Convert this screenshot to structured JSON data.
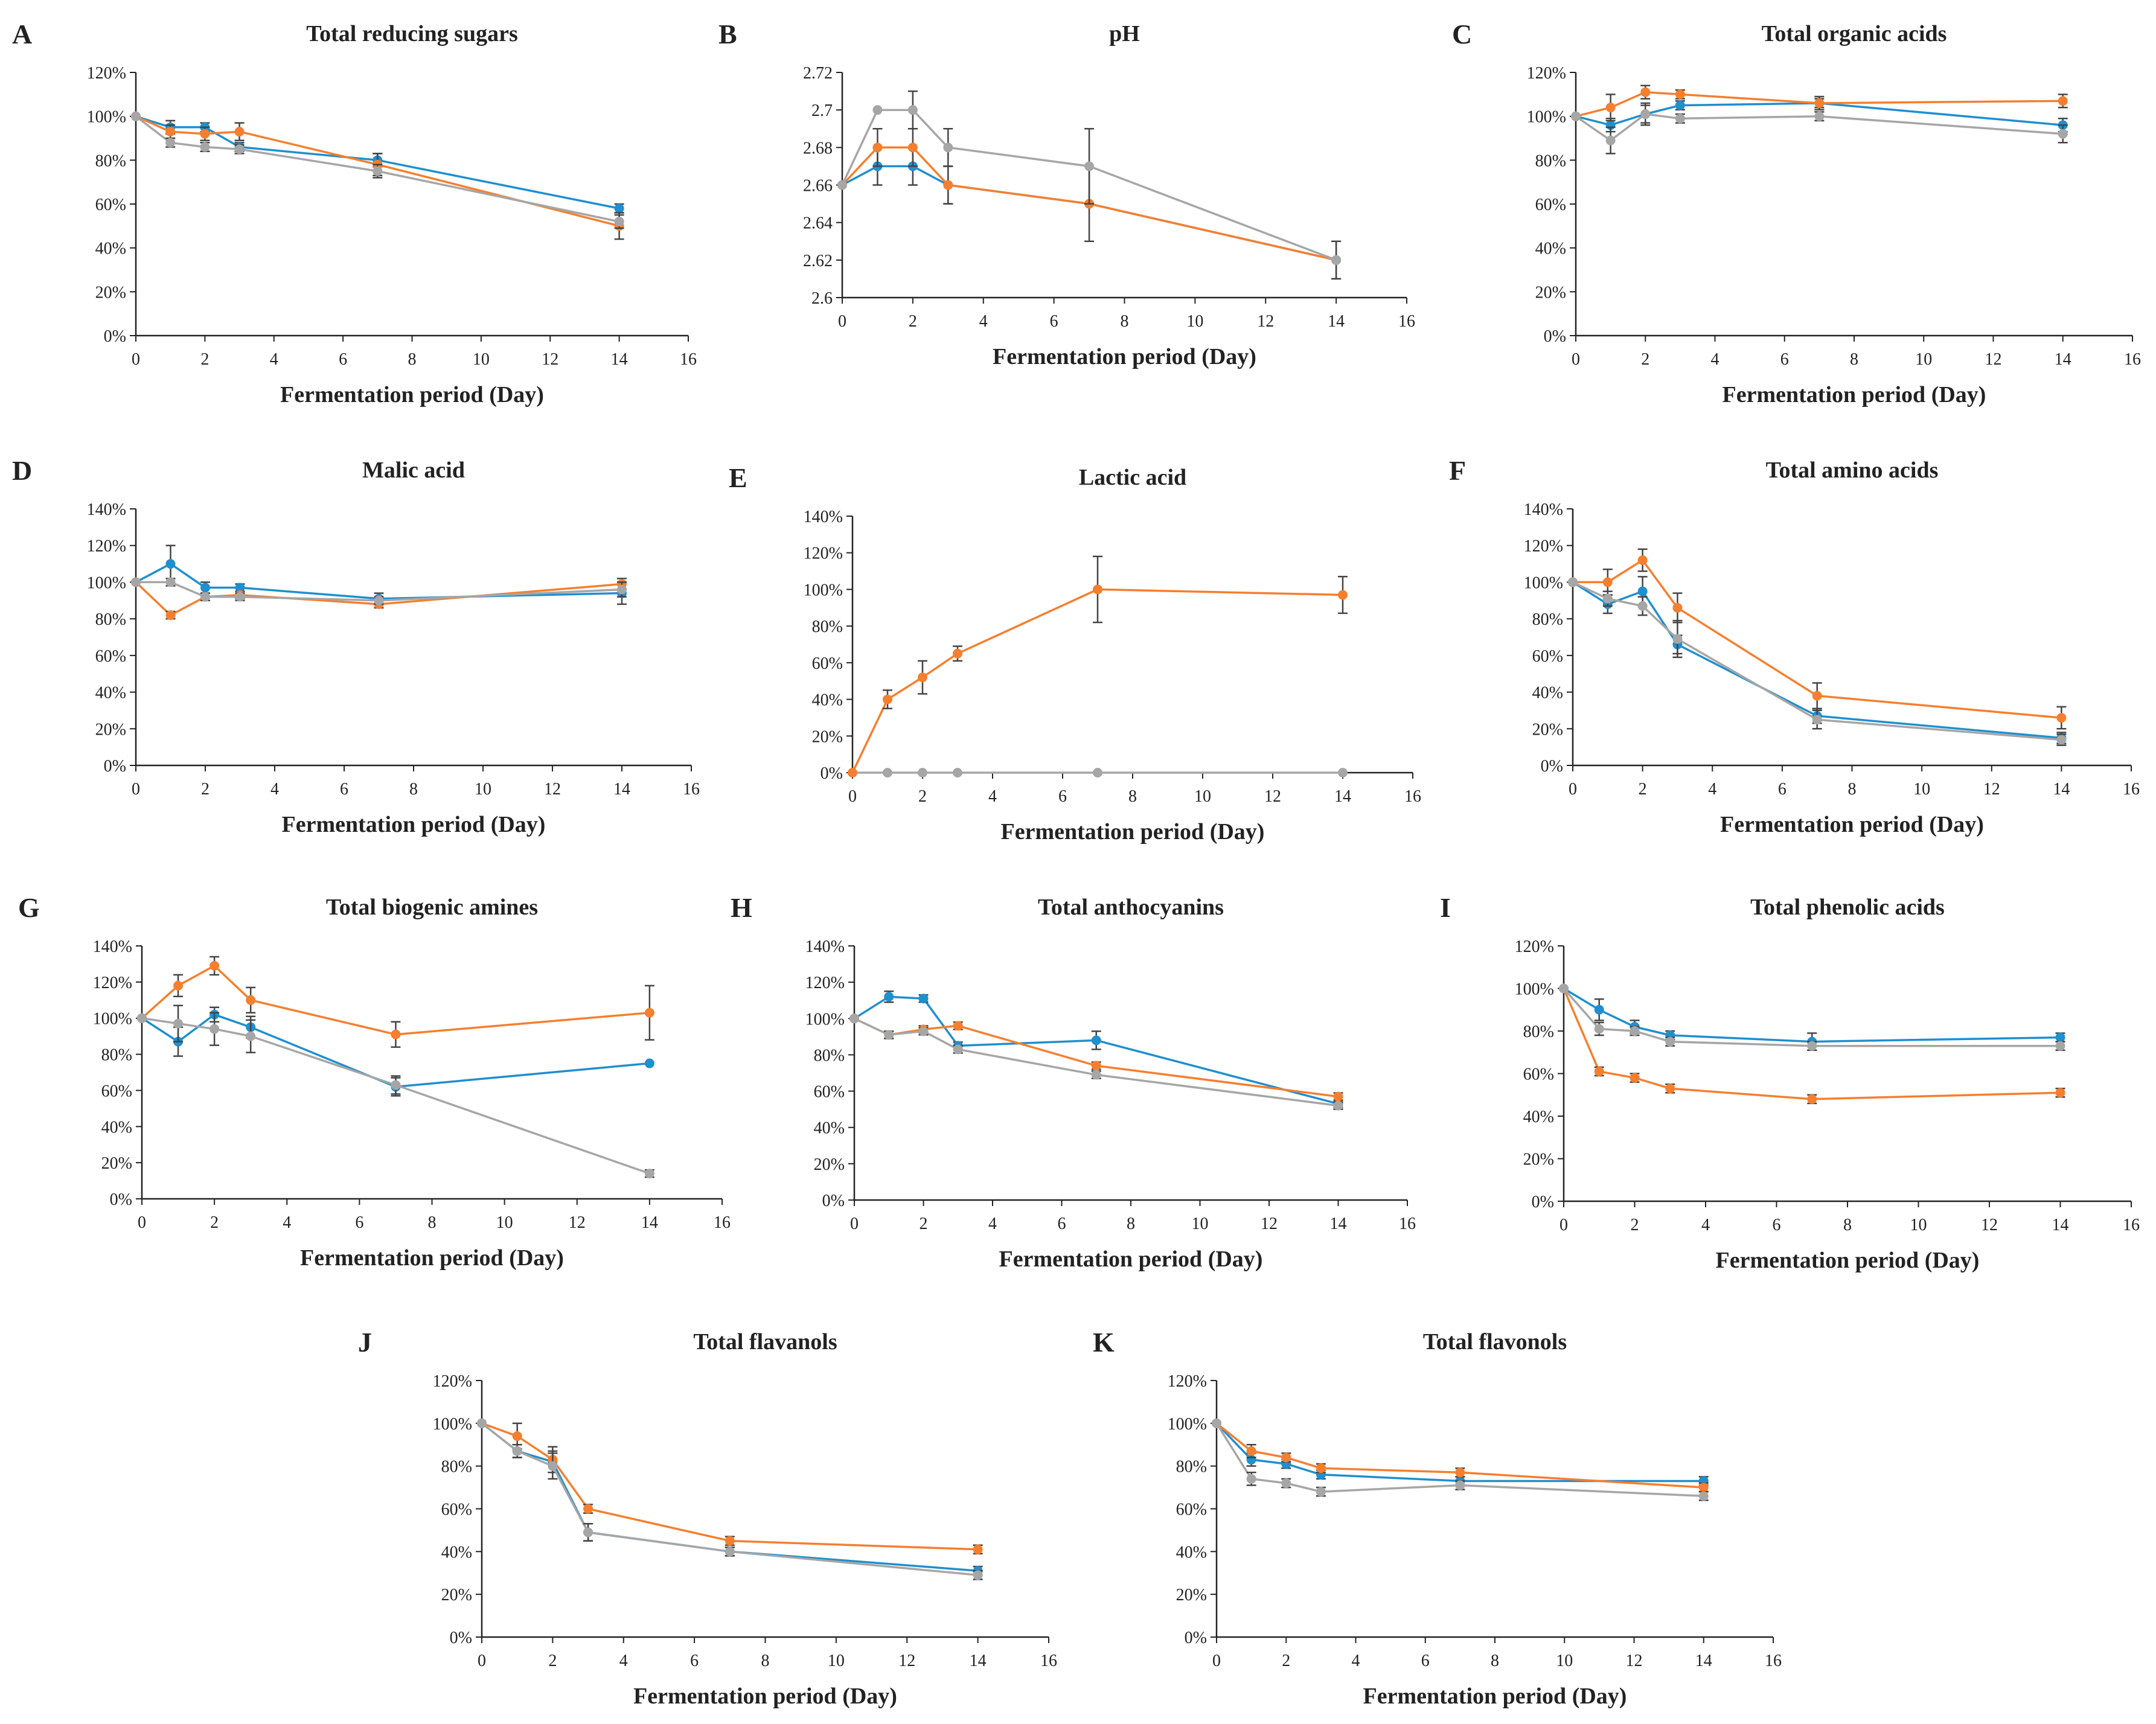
{
  "figure": {
    "series_colors": {
      "blue": "#1f8fcf",
      "orange": "#f57f2f",
      "gray": "#a6a6a6"
    },
    "xlabel": "Fermentation period (Day)"
  },
  "chart_data": [
    {
      "letter": "A",
      "type": "line",
      "title": "Total reducing sugars",
      "xlabel": "Fermentation period (Day)",
      "xlim": [
        0,
        16
      ],
      "xticks": [
        0,
        2,
        4,
        6,
        8,
        10,
        12,
        14,
        16
      ],
      "ylim": [
        0,
        120
      ],
      "yticks": [
        0,
        20,
        40,
        60,
        80,
        100,
        120
      ],
      "ytick_labels": [
        "0%",
        "20%",
        "40%",
        "60%",
        "80%",
        "100%",
        "120%"
      ],
      "x": [
        0,
        1,
        2,
        3,
        7,
        14
      ],
      "series": [
        {
          "name": "blue",
          "color": "#1f8fcf",
          "values": [
            100,
            95,
            95,
            86,
            80,
            58
          ],
          "errors": [
            0,
            3,
            2,
            2,
            3,
            2
          ]
        },
        {
          "name": "orange",
          "color": "#f57f2f",
          "values": [
            100,
            93,
            92,
            93,
            78,
            50
          ],
          "errors": [
            0,
            3,
            3,
            4,
            5,
            6
          ]
        },
        {
          "name": "gray",
          "color": "#a6a6a6",
          "values": [
            100,
            88,
            86,
            85,
            75,
            52
          ],
          "errors": [
            0,
            2,
            2,
            2,
            3,
            3
          ]
        }
      ]
    },
    {
      "letter": "B",
      "type": "line",
      "title": "pH",
      "xlabel": "Fermentation period (Day)",
      "xlim": [
        0,
        16
      ],
      "xticks": [
        0,
        2,
        4,
        6,
        8,
        10,
        12,
        14,
        16
      ],
      "ylim": [
        2.6,
        2.72
      ],
      "yticks": [
        2.6,
        2.62,
        2.64,
        2.66,
        2.68,
        2.7,
        2.72
      ],
      "ytick_labels": [
        "2.6",
        "2.62",
        "2.64",
        "2.66",
        "2.68",
        "2.7",
        "2.72"
      ],
      "x": [
        0,
        1,
        2,
        3,
        7,
        14
      ],
      "series": [
        {
          "name": "blue",
          "color": "#1f8fcf",
          "values": [
            2.66,
            2.67,
            2.67,
            2.66,
            2.65,
            2.62
          ],
          "errors": [
            0,
            0.01,
            0.01,
            0.01,
            0,
            0
          ]
        },
        {
          "name": "orange",
          "color": "#f57f2f",
          "values": [
            2.66,
            2.68,
            2.68,
            2.66,
            2.65,
            2.62
          ],
          "errors": [
            0,
            0.01,
            0.01,
            0.01,
            0.02,
            0.01
          ]
        },
        {
          "name": "gray",
          "color": "#a6a6a6",
          "values": [
            2.66,
            2.7,
            2.7,
            2.68,
            2.67,
            2.62
          ],
          "errors": [
            0,
            0,
            0.01,
            0.01,
            0.02,
            0.01
          ]
        }
      ]
    },
    {
      "letter": "C",
      "type": "line",
      "title": "Total organic acids",
      "xlabel": "Fermentation period (Day)",
      "xlim": [
        0,
        16
      ],
      "xticks": [
        0,
        2,
        4,
        6,
        8,
        10,
        12,
        14,
        16
      ],
      "ylim": [
        0,
        120
      ],
      "yticks": [
        0,
        20,
        40,
        60,
        80,
        100,
        120
      ],
      "ytick_labels": [
        "0%",
        "20%",
        "40%",
        "60%",
        "80%",
        "100%",
        "120%"
      ],
      "x": [
        0,
        1,
        2,
        3,
        7,
        14
      ],
      "series": [
        {
          "name": "blue",
          "color": "#1f8fcf",
          "values": [
            100,
            96,
            101,
            105,
            106,
            96
          ],
          "errors": [
            0,
            3,
            5,
            2,
            2,
            3
          ]
        },
        {
          "name": "orange",
          "color": "#f57f2f",
          "values": [
            100,
            104,
            111,
            110,
            106,
            107
          ],
          "errors": [
            0,
            6,
            3,
            2,
            3,
            3
          ]
        },
        {
          "name": "gray",
          "color": "#a6a6a6",
          "values": [
            100,
            89,
            101,
            99,
            100,
            92
          ],
          "errors": [
            0,
            6,
            4,
            2,
            2,
            4
          ]
        }
      ]
    },
    {
      "letter": "D",
      "type": "line",
      "title": "Malic acid",
      "xlabel": "Fermentation period (Day)",
      "xlim": [
        0,
        16
      ],
      "xticks": [
        0,
        2,
        4,
        6,
        8,
        10,
        12,
        14,
        16
      ],
      "ylim": [
        0,
        140
      ],
      "yticks": [
        0,
        20,
        40,
        60,
        80,
        100,
        120,
        140
      ],
      "ytick_labels": [
        "0%",
        "20%",
        "40%",
        "60%",
        "80%",
        "100%",
        "120%",
        "140%"
      ],
      "x": [
        0,
        1,
        2,
        3,
        7,
        14
      ],
      "series": [
        {
          "name": "blue",
          "color": "#1f8fcf",
          "values": [
            100,
            110,
            97,
            97,
            91,
            94
          ],
          "errors": [
            0,
            10,
            3,
            2,
            3,
            6
          ]
        },
        {
          "name": "orange",
          "color": "#f57f2f",
          "values": [
            100,
            82,
            92,
            93,
            88,
            99
          ],
          "errors": [
            0,
            2,
            2,
            2,
            2,
            3
          ]
        },
        {
          "name": "gray",
          "color": "#a6a6a6",
          "values": [
            100,
            100,
            92,
            92,
            90,
            96
          ],
          "errors": [
            0,
            2,
            2,
            2,
            2,
            4
          ]
        }
      ]
    },
    {
      "letter": "E",
      "type": "line",
      "title": "Lactic acid",
      "xlabel": "Fermentation period (Day)",
      "xlim": [
        0,
        16
      ],
      "xticks": [
        0,
        2,
        4,
        6,
        8,
        10,
        12,
        14,
        16
      ],
      "ylim": [
        0,
        140
      ],
      "yticks": [
        0,
        20,
        40,
        60,
        80,
        100,
        120,
        140
      ],
      "ytick_labels": [
        "0%",
        "20%",
        "40%",
        "60%",
        "80%",
        "100%",
        "120%",
        "140%"
      ],
      "x": [
        0,
        1,
        2,
        3,
        7,
        14
      ],
      "series": [
        {
          "name": "gray",
          "color": "#a6a6a6",
          "values": [
            0,
            0,
            0,
            0,
            0,
            0
          ],
          "errors": [
            0,
            0,
            0,
            0,
            0,
            0
          ]
        },
        {
          "name": "orange",
          "color": "#f57f2f",
          "values": [
            0,
            40,
            52,
            65,
            100,
            97
          ],
          "errors": [
            0,
            5,
            9,
            4,
            18,
            10
          ]
        }
      ]
    },
    {
      "letter": "F",
      "type": "line",
      "title": "Total amino acids",
      "xlabel": "Fermentation period (Day)",
      "xlim": [
        0,
        16
      ],
      "xticks": [
        0,
        2,
        4,
        6,
        8,
        10,
        12,
        14,
        16
      ],
      "ylim": [
        0,
        140
      ],
      "yticks": [
        0,
        20,
        40,
        60,
        80,
        100,
        120,
        140
      ],
      "ytick_labels": [
        "0%",
        "20%",
        "40%",
        "60%",
        "80%",
        "100%",
        "120%",
        "140%"
      ],
      "x": [
        0,
        1,
        2,
        3,
        7,
        14
      ],
      "series": [
        {
          "name": "blue",
          "color": "#1f8fcf",
          "values": [
            100,
            88,
            95,
            66,
            27,
            15
          ],
          "errors": [
            0,
            5,
            8,
            5,
            4,
            3
          ]
        },
        {
          "name": "orange",
          "color": "#f57f2f",
          "values": [
            100,
            100,
            112,
            86,
            38,
            26
          ],
          "errors": [
            0,
            7,
            6,
            8,
            7,
            6
          ]
        },
        {
          "name": "gray",
          "color": "#a6a6a6",
          "values": [
            100,
            91,
            87,
            69,
            25,
            14
          ],
          "errors": [
            0,
            4,
            5,
            10,
            5,
            3
          ]
        }
      ]
    },
    {
      "letter": "G",
      "type": "line",
      "title": "Total biogenic amines",
      "xlabel": "Fermentation period (Day)",
      "xlim": [
        0,
        16
      ],
      "xticks": [
        0,
        2,
        4,
        6,
        8,
        10,
        12,
        14,
        16
      ],
      "ylim": [
        0,
        140
      ],
      "yticks": [
        0,
        20,
        40,
        60,
        80,
        100,
        120,
        140
      ],
      "ytick_labels": [
        "0%",
        "20%",
        "40%",
        "60%",
        "80%",
        "100%",
        "120%",
        "140%"
      ],
      "x": [
        0,
        1,
        2,
        3,
        7,
        14
      ],
      "series": [
        {
          "name": "blue",
          "color": "#1f8fcf",
          "values": [
            100,
            87,
            102,
            95,
            62,
            75
          ],
          "errors": [
            0,
            8,
            4,
            6,
            5,
            0
          ]
        },
        {
          "name": "orange",
          "color": "#f57f2f",
          "values": [
            100,
            118,
            129,
            110,
            91,
            103
          ],
          "errors": [
            0,
            6,
            5,
            7,
            7,
            15
          ]
        },
        {
          "name": "gray",
          "color": "#a6a6a6",
          "values": [
            100,
            97,
            94,
            90,
            63,
            14
          ],
          "errors": [
            0,
            10,
            9,
            9,
            5,
            2
          ]
        }
      ]
    },
    {
      "letter": "H",
      "type": "line",
      "title": "Total anthocyanins",
      "xlabel": "Fermentation period (Day)",
      "xlim": [
        0,
        16
      ],
      "xticks": [
        0,
        2,
        4,
        6,
        8,
        10,
        12,
        14,
        16
      ],
      "ylim": [
        0,
        140
      ],
      "yticks": [
        0,
        20,
        40,
        60,
        80,
        100,
        120,
        140
      ],
      "ytick_labels": [
        "0%",
        "20%",
        "40%",
        "60%",
        "80%",
        "100%",
        "120%",
        "140%"
      ],
      "x": [
        0,
        1,
        2,
        3,
        7,
        14
      ],
      "series": [
        {
          "name": "blue",
          "color": "#1f8fcf",
          "values": [
            100,
            112,
            111,
            85,
            88,
            53
          ],
          "errors": [
            0,
            3,
            2,
            2,
            5,
            2
          ]
        },
        {
          "name": "orange",
          "color": "#f57f2f",
          "values": [
            100,
            91,
            94,
            96,
            74,
            57
          ],
          "errors": [
            0,
            2,
            2,
            2,
            2,
            2
          ]
        },
        {
          "name": "gray",
          "color": "#a6a6a6",
          "values": [
            100,
            91,
            93,
            83,
            69,
            52
          ],
          "errors": [
            0,
            2,
            2,
            2,
            2,
            2
          ]
        }
      ]
    },
    {
      "letter": "I",
      "type": "line",
      "title": "Total phenolic acids",
      "xlabel": "Fermentation period (Day)",
      "xlim": [
        0,
        16
      ],
      "xticks": [
        0,
        2,
        4,
        6,
        8,
        10,
        12,
        14,
        16
      ],
      "ylim": [
        0,
        120
      ],
      "yticks": [
        0,
        20,
        40,
        60,
        80,
        100,
        120
      ],
      "ytick_labels": [
        "0%",
        "20%",
        "40%",
        "60%",
        "80%",
        "100%",
        "120%"
      ],
      "x": [
        0,
        1,
        2,
        3,
        7,
        14
      ],
      "series": [
        {
          "name": "blue",
          "color": "#1f8fcf",
          "values": [
            100,
            90,
            82,
            78,
            75,
            77
          ],
          "errors": [
            0,
            5,
            3,
            2,
            4,
            2
          ]
        },
        {
          "name": "orange",
          "color": "#f57f2f",
          "values": [
            100,
            61,
            58,
            53,
            48,
            51
          ],
          "errors": [
            0,
            2,
            2,
            2,
            2,
            2
          ]
        },
        {
          "name": "gray",
          "color": "#a6a6a6",
          "values": [
            100,
            81,
            80,
            75,
            73,
            73
          ],
          "errors": [
            0,
            3,
            2,
            2,
            2,
            2
          ]
        }
      ]
    },
    {
      "letter": "J",
      "type": "line",
      "title": "Total flavanols",
      "xlabel": "Fermentation period (Day)",
      "xlim": [
        0,
        16
      ],
      "xticks": [
        0,
        2,
        4,
        6,
        8,
        10,
        12,
        14,
        16
      ],
      "ylim": [
        0,
        120
      ],
      "yticks": [
        0,
        20,
        40,
        60,
        80,
        100,
        120
      ],
      "ytick_labels": [
        "0%",
        "20%",
        "40%",
        "60%",
        "80%",
        "100%",
        "120%"
      ],
      "x": [
        0,
        1,
        2,
        3,
        7,
        14
      ],
      "series": [
        {
          "name": "blue",
          "color": "#1f8fcf",
          "values": [
            100,
            87,
            82,
            49,
            40,
            31
          ],
          "errors": [
            0,
            3,
            5,
            4,
            2,
            2
          ]
        },
        {
          "name": "orange",
          "color": "#f57f2f",
          "values": [
            100,
            94,
            83,
            60,
            45,
            41
          ],
          "errors": [
            0,
            6,
            6,
            2,
            2,
            2
          ]
        },
        {
          "name": "gray",
          "color": "#a6a6a6",
          "values": [
            100,
            87,
            80,
            49,
            40,
            29
          ],
          "errors": [
            0,
            3,
            6,
            4,
            2,
            2
          ]
        }
      ]
    },
    {
      "letter": "K",
      "type": "line",
      "title": "Total flavonols",
      "xlabel": "Fermentation period (Day)",
      "xlim": [
        0,
        16
      ],
      "xticks": [
        0,
        2,
        4,
        6,
        8,
        10,
        12,
        14,
        16
      ],
      "ylim": [
        0,
        120
      ],
      "yticks": [
        0,
        20,
        40,
        60,
        80,
        100,
        120
      ],
      "ytick_labels": [
        "0%",
        "20%",
        "40%",
        "60%",
        "80%",
        "100%",
        "120%"
      ],
      "x": [
        0,
        1,
        2,
        3,
        7,
        14
      ],
      "series": [
        {
          "name": "blue",
          "color": "#1f8fcf",
          "values": [
            100,
            83,
            81,
            76,
            73,
            73
          ],
          "errors": [
            0,
            3,
            2,
            2,
            2,
            2
          ]
        },
        {
          "name": "orange",
          "color": "#f57f2f",
          "values": [
            100,
            87,
            84,
            79,
            77,
            70
          ],
          "errors": [
            0,
            3,
            2,
            2,
            2,
            2
          ]
        },
        {
          "name": "gray",
          "color": "#a6a6a6",
          "values": [
            100,
            74,
            72,
            68,
            71,
            66
          ],
          "errors": [
            0,
            3,
            2,
            2,
            2,
            2
          ]
        }
      ]
    }
  ]
}
